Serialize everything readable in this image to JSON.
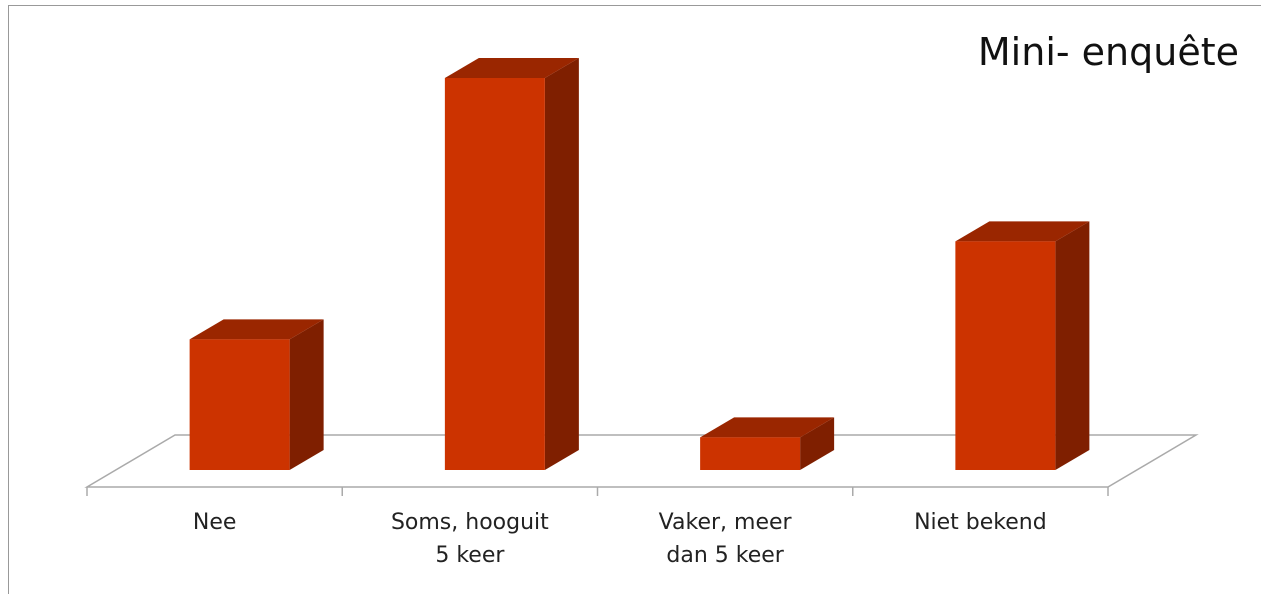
{
  "chart_data": {
    "type": "bar3d",
    "title": "Mini- enquête",
    "categories": [
      "Nee",
      "Soms, hooguit 5 keer",
      "Vaker, meer dan 5 keer",
      "Niet bekend"
    ],
    "values": [
      4,
      12,
      1,
      7
    ],
    "color": "#cc3300",
    "ylim": [
      0,
      12
    ]
  }
}
